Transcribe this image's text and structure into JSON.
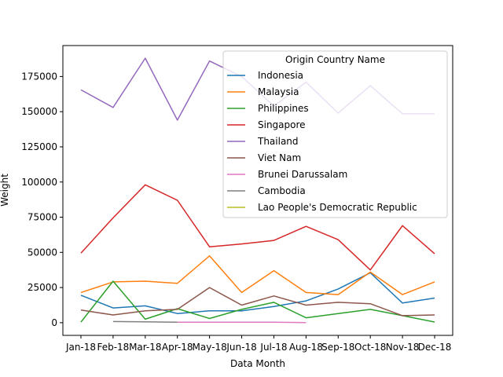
{
  "chart_data": {
    "type": "line",
    "xlabel": "Data Month",
    "ylabel": "Weight",
    "categories": [
      "Jan-18",
      "Feb-18",
      "Mar-18",
      "Apr-18",
      "May-18",
      "Jun-18",
      "Jul-18",
      "Aug-18",
      "Sep-18",
      "Oct-18",
      "Nov-18",
      "Dec-18"
    ],
    "ylim": [
      -9000,
      197000
    ],
    "yticks": [
      0,
      25000,
      50000,
      75000,
      100000,
      125000,
      150000,
      175000
    ],
    "legend_title": "Origin Country Name",
    "legend_position": "upper-right",
    "grid": false,
    "series": [
      {
        "name": "Indonesia",
        "color": "#1f77b4",
        "values": [
          19500,
          10500,
          12000,
          6500,
          8500,
          8500,
          11500,
          15500,
          24000,
          35500,
          14000,
          17500
        ]
      },
      {
        "name": "Malaysia",
        "color": "#ff7f0e",
        "values": [
          21500,
          29000,
          29500,
          28000,
          47500,
          21500,
          37000,
          21500,
          20000,
          36000,
          20000,
          29000
        ]
      },
      {
        "name": "Philippines",
        "color": "#2ca02c",
        "values": [
          500,
          29500,
          2500,
          10000,
          3000,
          9500,
          14500,
          3500,
          6500,
          9500,
          5000,
          500
        ]
      },
      {
        "name": "Singapore",
        "color": "#d62728",
        "values": [
          49500,
          74500,
          98000,
          87000,
          54000,
          56000,
          58500,
          68500,
          59000,
          37500,
          69000,
          49000
        ]
      },
      {
        "name": "Thailand",
        "color": "#9467bd",
        "values": [
          165500,
          153000,
          188000,
          144000,
          186000,
          175000,
          154000,
          171000,
          149000,
          168500,
          148500,
          148500
        ]
      },
      {
        "name": "Viet Nam",
        "color": "#8c564b",
        "values": [
          9000,
          5500,
          8500,
          9500,
          25000,
          12500,
          19000,
          12500,
          14500,
          13500,
          5000,
          5500
        ]
      },
      {
        "name": "Brunei Darussalam",
        "color": "#e377c2",
        "values": [
          null,
          null,
          null,
          300,
          300,
          300,
          300,
          100,
          null,
          null,
          null,
          null
        ]
      },
      {
        "name": "Cambodia",
        "color": "#7f7f7f",
        "values": [
          null,
          800,
          600,
          400,
          null,
          null,
          null,
          null,
          null,
          null,
          null,
          null
        ]
      },
      {
        "name": "Lao People's Democratic Republic",
        "color": "#bcbd22",
        "values": [
          null,
          null,
          null,
          null,
          null,
          null,
          null,
          null,
          null,
          null,
          null,
          null
        ]
      }
    ]
  }
}
